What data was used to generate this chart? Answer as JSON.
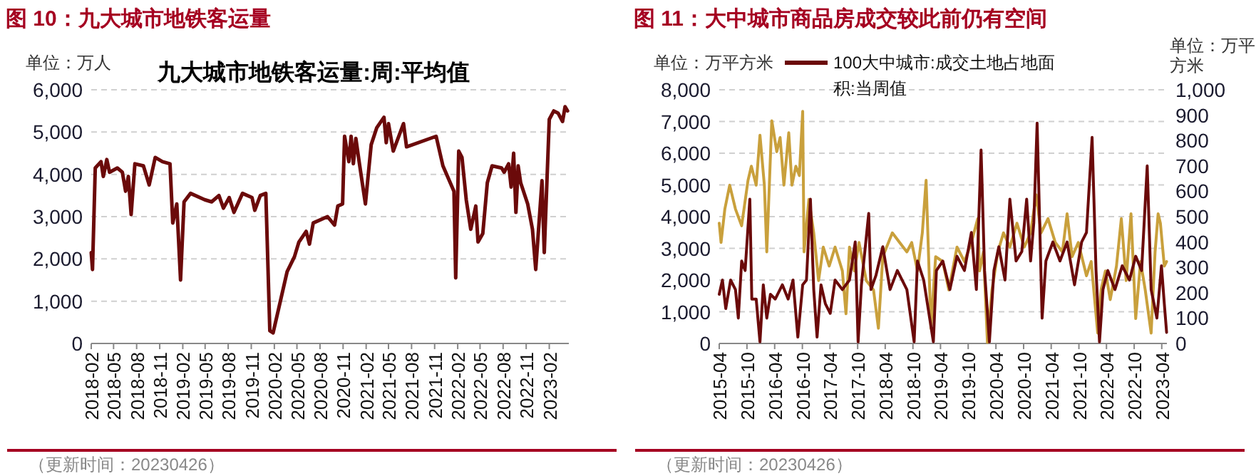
{
  "chart_data": [
    {
      "type": "line",
      "title": "图 10：九大城市地铁客运量",
      "ylabel": "单位：万人",
      "annotations": [
        "（更新时间：20230426）"
      ],
      "grid": "y",
      "xlim": [
        "2018-02-01",
        "2023-04-20"
      ],
      "xticks": [
        "2018-02",
        "2018-05",
        "2018-08",
        "2018-11",
        "2019-02",
        "2019-05",
        "2019-08",
        "2019-11",
        "2020-02",
        "2020-05",
        "2020-08",
        "2020-11",
        "2021-02",
        "2021-05",
        "2021-08",
        "2021-11",
        "2022-02",
        "2022-05",
        "2022-08",
        "2022-11",
        "2023-02"
      ],
      "ylim": [
        0,
        6000
      ],
      "yticks": [
        0,
        {
          "value": 1000,
          "label": "1,000"
        },
        {
          "value": 2000,
          "label": "2,000"
        },
        {
          "value": 3000,
          "label": "3,000"
        },
        {
          "value": 4000,
          "label": "4,000"
        },
        {
          "value": 5000,
          "label": "5,000"
        },
        {
          "value": 6000,
          "label": "6,000"
        }
      ],
      "series": [
        {
          "name": "九大城市地铁客运量:周:平均值",
          "color": "#6b0a0a",
          "x": [
            "2018-02-01",
            "2018-02-06",
            "2018-02-17",
            "2018-03-12",
            "2018-03-21",
            "2018-04-04",
            "2018-04-15",
            "2018-05-16",
            "2018-06-05",
            "2018-06-18",
            "2018-06-29",
            "2018-07-10",
            "2018-07-25",
            "2018-08-28",
            "2018-09-20",
            "2018-10-14",
            "2018-11-12",
            "2018-12-12",
            "2018-12-23",
            "2019-01-08",
            "2019-01-23",
            "2019-02-06",
            "2019-03-04",
            "2019-04-29",
            "2019-05-27",
            "2019-06-25",
            "2019-07-13",
            "2019-08-05",
            "2019-08-24",
            "2019-09-27",
            "2019-11-04",
            "2019-11-15",
            "2019-12-07",
            "2019-12-29",
            "2020-01-14",
            "2020-01-27",
            "2020-02-25",
            "2020-03-23",
            "2020-04-21",
            "2020-05-09",
            "2020-06-07",
            "2020-06-20",
            "2020-07-05",
            "2020-08-31",
            "2020-09-28",
            "2020-10-11",
            "2020-10-30",
            "2020-11-07",
            "2020-11-24",
            "2020-12-03",
            "2020-12-12",
            "2020-12-22",
            "2021-01-04",
            "2021-01-29",
            "2021-02-21",
            "2021-03-15",
            "2021-04-13",
            "2021-04-22",
            "2021-05-01",
            "2021-05-20",
            "2021-06-30",
            "2021-07-12",
            "2021-11-07",
            "2021-12-04",
            "2022-01-17",
            "2022-01-24",
            "2022-02-05",
            "2022-02-18",
            "2022-03-07",
            "2022-03-25",
            "2022-04-14",
            "2022-04-23",
            "2022-05-12",
            "2022-05-30",
            "2022-06-18",
            "2022-07-26",
            "2022-08-05",
            "2022-08-23",
            "2022-09-02",
            "2022-09-12",
            "2022-09-21",
            "2022-09-30",
            "2022-10-10",
            "2022-11-07",
            "2022-11-26",
            "2022-12-09",
            "2023-01-03",
            "2023-01-12",
            "2023-02-01",
            "2023-02-19",
            "2023-03-08",
            "2023-03-26",
            "2023-04-05",
            "2023-04-15"
          ],
          "values": [
            2150,
            1750,
            4150,
            4300,
            3950,
            4350,
            4050,
            4150,
            4050,
            3600,
            3950,
            3050,
            4250,
            4200,
            3750,
            4400,
            4300,
            4250,
            2850,
            3300,
            1500,
            3350,
            3550,
            3400,
            3350,
            3500,
            3200,
            3450,
            3100,
            3550,
            3450,
            3150,
            3500,
            3550,
            300,
            250,
            1000,
            1700,
            2050,
            2400,
            2650,
            2350,
            2850,
            3000,
            2800,
            3250,
            3300,
            4900,
            4300,
            4900,
            4250,
            4850,
            4300,
            3300,
            4700,
            5100,
            5350,
            4750,
            5200,
            4550,
            5200,
            4650,
            4900,
            4200,
            3600,
            1550,
            4550,
            4400,
            3400,
            2700,
            3250,
            2400,
            2600,
            3800,
            4200,
            4150,
            4050,
            4250,
            3700,
            4500,
            3100,
            4200,
            3800,
            3300,
            2700,
            1750,
            3850,
            2150,
            5300,
            5500,
            5450,
            5250,
            5600,
            5500
          ]
        }
      ]
    },
    {
      "type": "line",
      "title": "图 11：大中城市商品房成交较此前仍有空间",
      "ylabel": "单位：万平方米",
      "y2label": "单位：万平方米",
      "annotations": [
        "（更新时间：20230426）"
      ],
      "grid": "y",
      "legend": "top",
      "xlim": [
        "2015-04-01",
        "2023-05-05"
      ],
      "xticks": [
        "2015-04",
        "2015-10",
        "2016-04",
        "2016-10",
        "2017-04",
        "2017-10",
        "2018-04",
        "2018-10",
        "2019-04",
        "2019-10",
        "2020-04",
        "2020-10",
        "2021-04",
        "2021-10",
        "2022-04",
        "2022-10",
        "2023-04"
      ],
      "ylim": [
        0,
        8000
      ],
      "yticks": [
        0,
        {
          "value": 1000,
          "label": "1,000"
        },
        {
          "value": 2000,
          "label": "2,000"
        },
        {
          "value": 3000,
          "label": "3,000"
        },
        {
          "value": 4000,
          "label": "4,000"
        },
        {
          "value": 5000,
          "label": "5,000"
        },
        {
          "value": 6000,
          "label": "6,000"
        },
        {
          "value": 7000,
          "label": "7,000"
        },
        {
          "value": 8000,
          "label": "8,000"
        }
      ],
      "y2lim": [
        0,
        1000
      ],
      "y2ticks": [
        0,
        100,
        200,
        300,
        400,
        500,
        600,
        700,
        800,
        900,
        {
          "value": 1000,
          "label": "1,000"
        }
      ],
      "series": [
        {
          "color": "#c9a03c",
          "axis": "y2",
          "x": [
            "2015-04-01",
            "2015-04-13",
            "2015-05-08",
            "2015-06-09",
            "2015-07-17",
            "2015-08-27",
            "2015-10-08",
            "2015-10-30",
            "2015-12-01",
            "2015-12-26",
            "2016-01-24",
            "2016-02-09",
            "2016-03-13",
            "2016-04-15",
            "2016-05-07",
            "2016-06-01",
            "2016-07-03",
            "2016-07-24",
            "2016-08-19",
            "2016-09-11",
            "2016-10-03",
            "2016-10-12",
            "2016-11-13",
            "2016-12-15",
            "2017-01-16",
            "2017-02-16",
            "2017-03-27",
            "2017-05-05",
            "2017-06-22",
            "2017-07-16",
            "2017-08-08",
            "2017-09-09",
            "2017-10-10",
            "2017-11-27",
            "2018-01-14",
            "2018-02-15",
            "2018-03-16",
            "2018-05-18",
            "2018-07-05",
            "2018-08-22",
            "2018-09-23",
            "2018-10-31",
            "2018-12-02",
            "2018-12-27",
            "2019-01-28",
            "2019-02-28",
            "2019-04-16",
            "2019-05-26",
            "2019-07-19",
            "2019-09-06",
            "2019-10-22",
            "2019-12-03",
            "2019-12-15",
            "2020-01-10",
            "2020-02-05",
            "2020-03-06",
            "2020-04-14",
            "2020-05-21",
            "2020-07-02",
            "2020-08-18",
            "2020-10-05",
            "2020-11-16",
            "2020-12-23",
            "2021-01-24",
            "2021-03-11",
            "2021-04-28",
            "2021-06-14",
            "2021-07-15",
            "2021-08-17",
            "2021-09-27",
            "2021-11-20",
            "2021-12-21",
            "2022-02-02",
            "2022-02-24",
            "2022-03-25",
            "2022-04-26",
            "2022-06-06",
            "2022-07-08",
            "2022-08-09",
            "2022-09-10",
            "2022-10-11",
            "2022-11-12",
            "2022-12-13",
            "2023-01-21",
            "2023-02-16",
            "2023-03-08",
            "2023-03-23",
            "2023-04-18",
            "2023-05-03"
          ],
          "values": [
            474,
            398,
            530,
            624,
            530,
            464,
            643,
            699,
            624,
            821,
            624,
            361,
            878,
            756,
            812,
            624,
            831,
            624,
            699,
            662,
            915,
            361,
            568,
            436,
            248,
            380,
            305,
            380,
            286,
            117,
            380,
            286,
            398,
            248,
            211,
            60,
            342,
            436,
            398,
            361,
            398,
            286,
            436,
            643,
            60,
            342,
            323,
            211,
            380,
            323,
            398,
            492,
            286,
            361,
            4,
            211,
            361,
            436,
            380,
            474,
            380,
            436,
            586,
            436,
            492,
            398,
            361,
            511,
            342,
            398,
            267,
            323,
            41,
            211,
            286,
            173,
            305,
            492,
            248,
            511,
            98,
            323,
            211,
            41,
            361,
            511,
            474,
            305,
            323
          ]
        },
        {
          "name": "100大中城市:成交土地占地面积:当周值",
          "color": "#6b0a0a",
          "x": [
            "2015-04-01",
            "2015-04-22",
            "2015-05-14",
            "2015-06-15",
            "2015-07-17",
            "2015-08-05",
            "2015-08-27",
            "2015-09-19",
            "2015-10-20",
            "2015-11-02",
            "2015-12-01",
            "2015-12-26",
            "2016-01-17",
            "2016-02-09",
            "2016-03-04",
            "2016-04-05",
            "2016-05-22",
            "2016-06-29",
            "2016-07-31",
            "2016-09-01",
            "2016-10-03",
            "2016-10-28",
            "2016-11-23",
            "2016-12-15",
            "2017-01-06",
            "2017-02-01",
            "2017-03-02",
            "2017-04-03",
            "2017-05-05",
            "2017-06-22",
            "2017-08-08",
            "2017-09-15",
            "2017-10-04",
            "2017-10-26",
            "2017-12-13",
            "2017-12-28",
            "2018-01-30",
            "2018-03-16",
            "2018-05-03",
            "2018-06-20",
            "2018-08-22",
            "2018-10-09",
            "2018-10-31",
            "2018-12-11",
            "2019-02-13",
            "2019-03-05",
            "2019-04-16",
            "2019-06-02",
            "2019-07-19",
            "2019-09-06",
            "2019-10-22",
            "2019-11-24",
            "2019-12-25",
            "2020-01-17",
            "2020-02-18",
            "2020-03-19",
            "2020-04-20",
            "2020-05-31",
            "2020-07-02",
            "2020-08-12",
            "2020-09-19",
            "2020-10-21",
            "2020-11-16",
            "2020-12-07",
            "2020-12-29",
            "2021-01-31",
            "2021-02-25",
            "2021-04-12",
            "2021-05-29",
            "2021-07-15",
            "2021-09-02",
            "2021-10-19",
            "2021-11-20",
            "2021-12-27",
            "2022-01-22",
            "2022-02-14",
            "2022-03-09",
            "2022-04-10",
            "2022-05-27",
            "2022-07-14",
            "2022-08-31",
            "2022-10-11",
            "2022-11-19",
            "2022-12-26",
            "2023-01-21",
            "2023-02-28",
            "2023-03-30",
            "2023-04-18",
            "2023-05-03"
          ],
          "values": [
            1550,
            2000,
            1100,
            2000,
            1700,
            800,
            2600,
            2300,
            4550,
            1400,
            1400,
            50,
            1850,
            800,
            1550,
            1400,
            1850,
            1400,
            2000,
            200,
            1850,
            2000,
            4550,
            1700,
            200,
            1850,
            1250,
            950,
            2000,
            1700,
            2000,
            3200,
            50,
            1850,
            4100,
            1700,
            2150,
            3050,
            1700,
            2300,
            1700,
            50,
            2600,
            2000,
            50,
            2300,
            2600,
            1700,
            2750,
            2300,
            3500,
            1700,
            6100,
            2300,
            50,
            2300,
            3050,
            2000,
            4550,
            2600,
            2900,
            4550,
            2600,
            3800,
            6950,
            800,
            2600,
            3200,
            2600,
            3200,
            1850,
            3200,
            3500,
            6500,
            2300,
            50,
            1700,
            2300,
            1700,
            2450,
            2000,
            2750,
            2300,
            5600,
            1700,
            800,
            2450,
            1250,
            350
          ]
        }
      ]
    }
  ]
}
